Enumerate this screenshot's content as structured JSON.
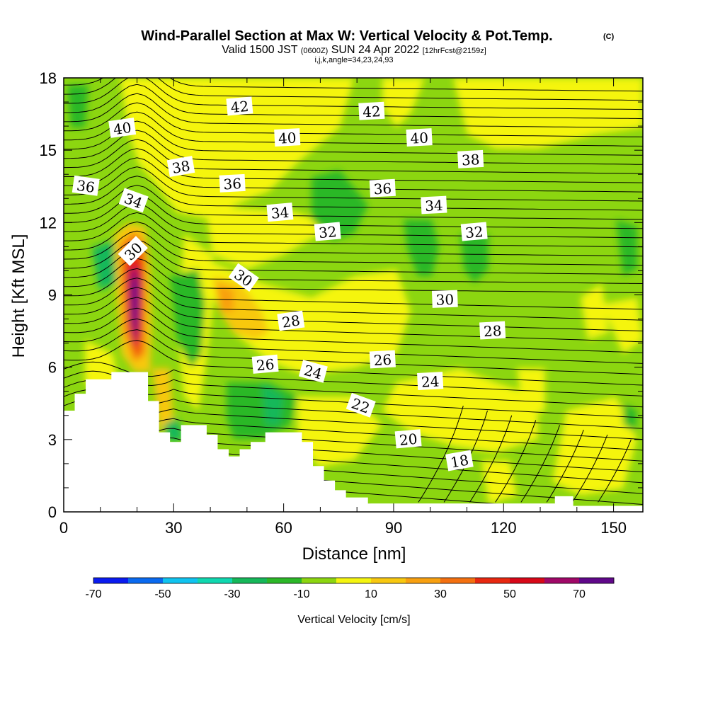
{
  "title": {
    "main": "Wind-Parallel Section at Max W: Vertical Velocity & Pot.Temp.",
    "copyright": "(C)",
    "valid_prefix": "Valid 1500 JST",
    "valid_utc": "(0600Z)",
    "valid_date": "SUN 24 Apr 2022",
    "forecast": "[12hrFcst@2159z]",
    "indices": "i,j,k,angle=34,23,24,93"
  },
  "colorbar": {
    "label": "Vertical Velocity [cm/s]",
    "colors": [
      "#0a1bf0",
      "#0a6af0",
      "#10c4f0",
      "#10d8b0",
      "#16b85a",
      "#2cb828",
      "#8cd610",
      "#f5f510",
      "#f8c810",
      "#f8a010",
      "#f47010",
      "#e82810",
      "#d80818",
      "#a00868",
      "#60088a"
    ],
    "tick_values": [
      "-70",
      "-50",
      "-30",
      "-10",
      "10",
      "30",
      "50",
      "70"
    ]
  },
  "chart_data": {
    "type": "heatmap",
    "title": "Wind-Parallel Section at Max W: Vertical Velocity & Pot.Temp.",
    "xlabel": "Distance [nm]",
    "ylabel": "Height [Kft MSL]",
    "xlim": [
      0,
      158
    ],
    "ylim": [
      0,
      18
    ],
    "x_ticks": [
      0,
      30,
      60,
      90,
      120,
      150
    ],
    "y_ticks": [
      0,
      3,
      6,
      9,
      12,
      15,
      18
    ],
    "fill_variable": "Vertical Velocity [cm/s]",
    "contour_variable": "Potential Temperature",
    "terrain": [
      [
        0,
        4.2
      ],
      [
        3,
        4.2
      ],
      [
        3,
        4.9
      ],
      [
        6,
        4.9
      ],
      [
        6,
        5.5
      ],
      [
        13,
        5.5
      ],
      [
        13,
        5.8
      ],
      [
        23,
        5.8
      ],
      [
        23,
        4.6
      ],
      [
        26,
        4.6
      ],
      [
        26,
        3.3
      ],
      [
        29,
        3.3
      ],
      [
        29,
        2.9
      ],
      [
        32,
        2.9
      ],
      [
        32,
        3.6
      ],
      [
        39,
        3.6
      ],
      [
        39,
        3.2
      ],
      [
        42,
        3.2
      ],
      [
        42,
        2.6
      ],
      [
        45,
        2.6
      ],
      [
        45,
        2.3
      ],
      [
        48,
        2.3
      ],
      [
        48,
        2.6
      ],
      [
        51,
        2.6
      ],
      [
        51,
        2.9
      ],
      [
        55,
        2.9
      ],
      [
        55,
        3.3
      ],
      [
        65,
        3.3
      ],
      [
        65,
        2.9
      ],
      [
        68,
        2.9
      ],
      [
        68,
        1.9
      ],
      [
        71,
        1.9
      ],
      [
        71,
        1.3
      ],
      [
        74,
        1.3
      ],
      [
        74,
        0.9
      ],
      [
        77,
        0.9
      ],
      [
        77,
        0.6
      ],
      [
        83,
        0.6
      ],
      [
        83,
        0.35
      ],
      [
        134,
        0.35
      ],
      [
        134,
        0.65
      ],
      [
        139,
        0.65
      ],
      [
        139,
        0.25
      ],
      [
        158,
        0.25
      ]
    ],
    "contour_labels": [
      {
        "text": "42",
        "x": 48,
        "y": 16.8,
        "angle": -5
      },
      {
        "text": "42",
        "x": 84,
        "y": 16.6,
        "angle": -3
      },
      {
        "text": "40",
        "x": 16,
        "y": 15.9,
        "angle": -8
      },
      {
        "text": "40",
        "x": 61,
        "y": 15.5,
        "angle": -3
      },
      {
        "text": "40",
        "x": 97,
        "y": 15.5,
        "angle": -3
      },
      {
        "text": "38",
        "x": 32,
        "y": 14.3,
        "angle": -10
      },
      {
        "text": "38",
        "x": 111,
        "y": 14.6,
        "angle": -3
      },
      {
        "text": "36",
        "x": 6,
        "y": 13.5,
        "angle": 8
      },
      {
        "text": "36",
        "x": 46,
        "y": 13.6,
        "angle": -3
      },
      {
        "text": "36",
        "x": 87,
        "y": 13.4,
        "angle": -3
      },
      {
        "text": "34",
        "x": 19,
        "y": 12.9,
        "angle": 20
      },
      {
        "text": "34",
        "x": 59,
        "y": 12.4,
        "angle": -5
      },
      {
        "text": "34",
        "x": 101,
        "y": 12.7,
        "angle": -3
      },
      {
        "text": "32",
        "x": 72,
        "y": 11.6,
        "angle": -5
      },
      {
        "text": "32",
        "x": 112,
        "y": 11.6,
        "angle": -5
      },
      {
        "text": "30",
        "x": 19,
        "y": 10.8,
        "angle": -45
      },
      {
        "text": "30",
        "x": 49,
        "y": 9.7,
        "angle": 35
      },
      {
        "text": "30",
        "x": 104,
        "y": 8.8,
        "angle": -2
      },
      {
        "text": "28",
        "x": 62,
        "y": 7.9,
        "angle": -8
      },
      {
        "text": "28",
        "x": 117,
        "y": 7.5,
        "angle": -3
      },
      {
        "text": "26",
        "x": 55,
        "y": 6.1,
        "angle": -5
      },
      {
        "text": "26",
        "x": 87,
        "y": 6.3,
        "angle": -3
      },
      {
        "text": "24",
        "x": 68,
        "y": 5.8,
        "angle": 15
      },
      {
        "text": "24",
        "x": 100,
        "y": 5.4,
        "angle": -3
      },
      {
        "text": "22",
        "x": 81,
        "y": 4.4,
        "angle": 20
      },
      {
        "text": "20",
        "x": 94,
        "y": 3.0,
        "angle": -5
      },
      {
        "text": "18",
        "x": 108,
        "y": 2.1,
        "angle": -10
      }
    ]
  }
}
